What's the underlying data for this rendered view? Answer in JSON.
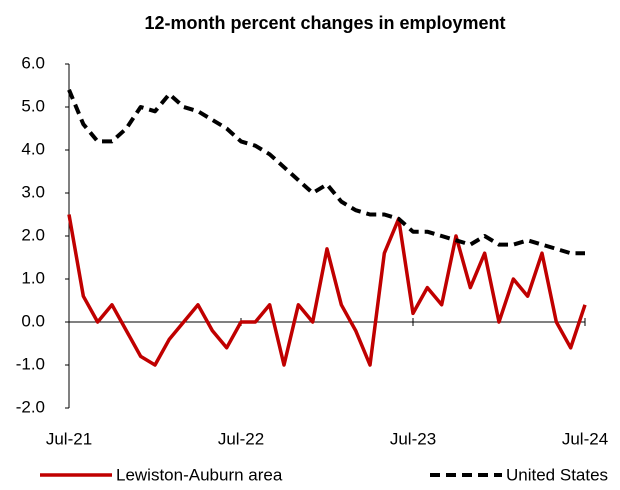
{
  "chart_data": {
    "type": "line",
    "title": "12-month percent changes in employment",
    "categories": [
      "Jul-21",
      null,
      null,
      null,
      null,
      null,
      null,
      null,
      null,
      null,
      null,
      null,
      "Jul-22",
      null,
      null,
      null,
      null,
      null,
      null,
      null,
      null,
      null,
      null,
      null,
      "Jul-23",
      null,
      null,
      null,
      null,
      null,
      null,
      null,
      null,
      null,
      null,
      null,
      "Jul-24"
    ],
    "series": [
      {
        "name": "Lewiston-Auburn area",
        "color": "#c00000",
        "dash": "solid",
        "values": [
          2.5,
          0.6,
          0.0,
          0.4,
          -0.2,
          -0.8,
          -1.0,
          -0.4,
          0.0,
          0.4,
          -0.2,
          -0.6,
          0.0,
          0.0,
          0.4,
          -1.0,
          0.4,
          0.0,
          1.7,
          0.4,
          -0.2,
          -1.0,
          1.6,
          2.4,
          0.2,
          0.8,
          0.4,
          2.0,
          0.8,
          1.6,
          0.0,
          1.0,
          0.6,
          1.6,
          0.0,
          -0.6,
          0.4
        ]
      },
      {
        "name": "United States",
        "color": "#000000",
        "dash": "dashed",
        "values": [
          5.4,
          4.6,
          4.2,
          4.2,
          4.5,
          5.0,
          4.9,
          5.3,
          5.0,
          4.9,
          4.7,
          4.5,
          4.2,
          4.1,
          3.9,
          3.6,
          3.3,
          3.0,
          3.2,
          2.8,
          2.6,
          2.5,
          2.5,
          2.4,
          2.1,
          2.1,
          2.0,
          1.9,
          1.8,
          2.0,
          1.8,
          1.8,
          1.9,
          1.8,
          1.7,
          1.6,
          1.6
        ]
      }
    ],
    "ylim": [
      -2,
      6
    ],
    "yticks": [
      {
        "value": -2,
        "label": "-2.0"
      },
      {
        "value": -1,
        "label": "-1.0"
      },
      {
        "value": 0,
        "label": "0.0"
      },
      {
        "value": 1,
        "label": "1.0"
      },
      {
        "value": 2,
        "label": "2.0"
      },
      {
        "value": 3,
        "label": "3.0"
      },
      {
        "value": 4,
        "label": "4.0"
      },
      {
        "value": 5,
        "label": "5.0"
      },
      {
        "value": 6,
        "label": "6.0"
      }
    ],
    "grid": false
  }
}
